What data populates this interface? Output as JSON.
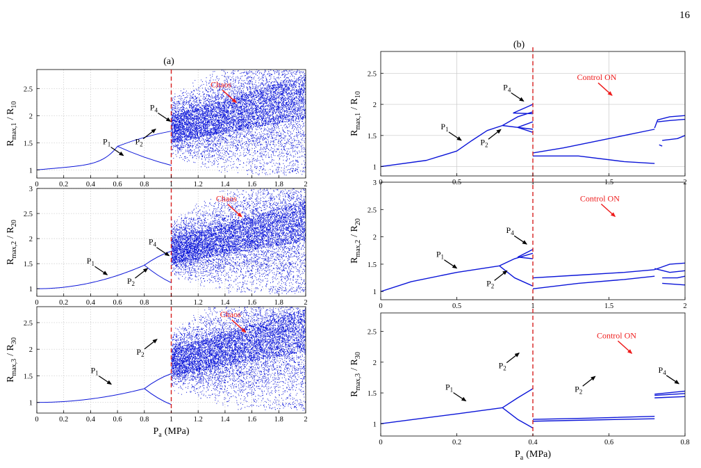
{
  "page_number": "16",
  "panel_a_label": "(a)",
  "panel_b_label": "(b)",
  "annotations": {
    "chaos": "Chaos",
    "control_on": "Control ON",
    "p1": "P",
    "p1_sub": "1",
    "p2": "P",
    "p2_sub": "2",
    "p4": "P",
    "p4_sub": "4"
  },
  "colors": {
    "data": "#0a14d8",
    "dashed_line": "#d62020",
    "annotation_red": "#ee1c1c",
    "grid": "#c8c8c8"
  },
  "chart_data": [
    {
      "id": "a1",
      "type": "scatter",
      "panel": "(a)",
      "ylabel_main": "R",
      "ylabel_sub": "max,1",
      "ylabel_tail": "/ R",
      "ylabel_tail_sub": "10",
      "xlim": [
        0,
        2
      ],
      "ylim": [
        0.85,
        2.85
      ],
      "xticks": [
        0,
        0.2,
        0.4,
        0.6,
        0.8,
        1,
        1.2,
        1.4,
        1.6,
        1.8,
        2
      ],
      "xtick_labels": [
        "0",
        "0.2",
        "0.4",
        "0.6",
        "0.8",
        "1",
        "1.2",
        "1.4",
        "1.6",
        "1.8",
        "2"
      ],
      "yticks": [
        1,
        1.5,
        2,
        2.5
      ],
      "ytick_labels": [
        "1",
        "1.5",
        "2",
        "2.5"
      ],
      "grid": true,
      "dashed_x": 1,
      "bifurcation": {
        "start": 1.0,
        "end": 1.25,
        "pd1": 0.6,
        "pd2": 0.8,
        "pd3": 0.92,
        "chaos_start": 1.0
      },
      "annotations": [
        {
          "label": "p1",
          "x": 0.52,
          "y": 1.47
        },
        {
          "label": "p2",
          "x": 0.76,
          "y": 1.47
        },
        {
          "label": "p4",
          "x": 0.87,
          "y": 2.1
        },
        {
          "label": "chaos",
          "x": 1.37,
          "y": 2.42,
          "red": true
        }
      ]
    },
    {
      "id": "a2",
      "type": "scatter",
      "panel": "(a)",
      "ylabel_main": "R",
      "ylabel_sub": "max,2",
      "ylabel_tail": "/ R",
      "ylabel_tail_sub": "20",
      "xlim": [
        0,
        2
      ],
      "ylim": [
        0.85,
        3.0
      ],
      "xticks": [
        0,
        0.2,
        0.4,
        0.6,
        0.8,
        1,
        1.2,
        1.4,
        1.6,
        1.8,
        2
      ],
      "xtick_labels": [
        "0",
        "0.2",
        "0.4",
        "0.6",
        "0.8",
        "1",
        "1.2",
        "1.4",
        "1.6",
        "1.8",
        "2"
      ],
      "yticks": [
        1,
        1.5,
        2,
        2.5,
        3
      ],
      "ytick_labels": [
        "1",
        "1.5",
        "2",
        "2.5",
        "3"
      ],
      "grid": true,
      "dashed_x": 1,
      "bifurcation": {
        "start": 1.0,
        "end": 1.45,
        "pd1": 0.8,
        "pd2": 0.96,
        "pd3": 1.0,
        "chaos_start": 1.0
      },
      "annotations": [
        {
          "label": "p1",
          "x": 0.4,
          "y": 1.5
        },
        {
          "label": "p2",
          "x": 0.7,
          "y": 1.1
        },
        {
          "label": "p4",
          "x": 0.86,
          "y": 1.88
        },
        {
          "label": "chaos",
          "x": 1.41,
          "y": 2.63,
          "red": true
        }
      ]
    },
    {
      "id": "a3",
      "type": "scatter",
      "panel": "(a)",
      "ylabel_main": "R",
      "ylabel_sub": "max,3",
      "ylabel_tail": "/ R",
      "ylabel_tail_sub": "30",
      "xlim": [
        0,
        2
      ],
      "ylim": [
        0.8,
        2.8
      ],
      "xticks": [
        0,
        0.2,
        0.4,
        0.6,
        0.8,
        1,
        1.2,
        1.4,
        1.6,
        1.8,
        2
      ],
      "xtick_labels": [
        "0",
        "0.2",
        "0.4",
        "0.6",
        "0.8",
        "1",
        "1.2",
        "1.4",
        "1.6",
        "1.8",
        "2"
      ],
      "yticks": [
        1,
        1.5,
        2,
        2.5
      ],
      "ytick_labels": [
        "1",
        "1.5",
        "2",
        "2.5"
      ],
      "grid": true,
      "dashed_x": 1,
      "bifurcation": {
        "start": 1.0,
        "end": 1.6,
        "pd1": 0.8,
        "pd2": 1.0,
        "pd3": 1.05,
        "chaos_start": 1.0
      },
      "annotations": [
        {
          "label": "p1",
          "x": 0.43,
          "y": 1.55
        },
        {
          "label": "p2",
          "x": 0.77,
          "y": 1.9
        },
        {
          "label": "chaos",
          "x": 1.44,
          "y": 2.5,
          "red": true
        }
      ],
      "xlabel_main": "P",
      "xlabel_sub": "a",
      "xlabel_tail": "(MPa)"
    },
    {
      "id": "b1",
      "type": "line",
      "panel": "(b)",
      "ylabel_main": "R",
      "ylabel_sub": "max,1",
      "ylabel_tail": "/ R",
      "ylabel_tail_sub": "10",
      "xlim": [
        0,
        2
      ],
      "ylim": [
        0.85,
        2.85
      ],
      "xticks": [
        0,
        0.5,
        1,
        1.5,
        2
      ],
      "xtick_labels": [
        "0",
        "0.5",
        "1",
        "1.5",
        "2"
      ],
      "yticks": [
        1,
        1.5,
        2,
        2.5
      ],
      "ytick_labels": [
        "1",
        "1.5",
        "2",
        "2.5"
      ],
      "grid": true,
      "dashed_x": 1,
      "branches": [
        [
          [
            0,
            1.0
          ],
          [
            0.3,
            1.1
          ],
          [
            0.5,
            1.25
          ],
          [
            0.6,
            1.42
          ],
          [
            0.7,
            1.58
          ],
          [
            0.8,
            1.66
          ]
        ],
        [
          [
            0.8,
            1.66
          ],
          [
            0.9,
            1.8
          ],
          [
            1.0,
            1.88
          ]
        ],
        [
          [
            0.8,
            1.66
          ],
          [
            0.9,
            1.63
          ],
          [
            1.0,
            1.6
          ]
        ],
        [
          [
            0.87,
            1.86
          ],
          [
            1.0,
            2.0
          ]
        ],
        [
          [
            0.87,
            1.86
          ],
          [
            1.0,
            1.85
          ]
        ],
        [
          [
            0.9,
            1.63
          ],
          [
            1.0,
            1.72
          ]
        ],
        [
          [
            0.9,
            1.63
          ],
          [
            1.0,
            1.55
          ]
        ],
        [
          [
            1.0,
            1.22
          ],
          [
            1.2,
            1.3
          ],
          [
            1.5,
            1.45
          ],
          [
            1.8,
            1.6
          ]
        ],
        [
          [
            1.0,
            1.17
          ],
          [
            1.3,
            1.17
          ],
          [
            1.6,
            1.08
          ],
          [
            1.8,
            1.05
          ]
        ],
        [
          [
            1.8,
            1.62
          ],
          [
            1.82,
            1.75
          ],
          [
            1.9,
            1.8
          ],
          [
            2.0,
            1.82
          ]
        ],
        [
          [
            1.82,
            1.72
          ],
          [
            1.9,
            1.74
          ],
          [
            2.0,
            1.76
          ]
        ],
        [
          [
            1.85,
            1.42
          ],
          [
            1.95,
            1.45
          ],
          [
            2.0,
            1.5
          ]
        ],
        [
          [
            1.83,
            1.35
          ],
          [
            1.85,
            1.33
          ]
        ]
      ],
      "annotations": [
        {
          "label": "p1",
          "x": 0.42,
          "y": 1.6
        },
        {
          "label": "p2",
          "x": 0.68,
          "y": 1.35
        },
        {
          "label": "p4",
          "x": 0.83,
          "y": 2.23
        },
        {
          "label": "control_on",
          "x": 1.42,
          "y": 2.3,
          "red": true
        }
      ]
    },
    {
      "id": "b2",
      "type": "line",
      "panel": "(b)",
      "ylabel_main": "R",
      "ylabel_sub": "max,2",
      "ylabel_tail": "/ R",
      "ylabel_tail_sub": "20",
      "xlim": [
        0,
        2
      ],
      "ylim": [
        0.85,
        3.0
      ],
      "xticks": [
        0,
        0.5,
        1,
        1.5,
        2
      ],
      "xtick_labels": [
        "0",
        "0.5",
        "1",
        "1.5",
        "2"
      ],
      "yticks": [
        1,
        1.5,
        2,
        2.5,
        3
      ],
      "ytick_labels": [
        "1",
        "1.5",
        "2",
        "2.5",
        "3"
      ],
      "grid": false,
      "dashed_x": 1,
      "branches": [
        [
          [
            0,
            1.0
          ],
          [
            0.2,
            1.18
          ],
          [
            0.5,
            1.35
          ],
          [
            0.78,
            1.47
          ]
        ],
        [
          [
            0.78,
            1.47
          ],
          [
            0.88,
            1.6
          ],
          [
            1.0,
            1.7
          ]
        ],
        [
          [
            0.78,
            1.47
          ],
          [
            0.88,
            1.25
          ],
          [
            1.0,
            1.1
          ]
        ],
        [
          [
            0.9,
            1.63
          ],
          [
            1.0,
            1.77
          ]
        ],
        [
          [
            0.9,
            1.63
          ],
          [
            1.0,
            1.6
          ]
        ],
        [
          [
            1.0,
            1.25
          ],
          [
            1.3,
            1.3
          ],
          [
            1.6,
            1.35
          ],
          [
            1.8,
            1.4
          ]
        ],
        [
          [
            1.0,
            1.05
          ],
          [
            1.3,
            1.15
          ],
          [
            1.6,
            1.22
          ],
          [
            1.8,
            1.28
          ]
        ],
        [
          [
            1.8,
            1.4
          ],
          [
            1.9,
            1.5
          ],
          [
            2.0,
            1.52
          ]
        ],
        [
          [
            1.8,
            1.42
          ],
          [
            1.9,
            1.35
          ],
          [
            2.0,
            1.38
          ]
        ],
        [
          [
            1.85,
            1.25
          ],
          [
            1.95,
            1.25
          ],
          [
            2.0,
            1.28
          ]
        ],
        [
          [
            1.85,
            1.15
          ],
          [
            2.0,
            1.12
          ]
        ]
      ],
      "annotations": [
        {
          "label": "p1",
          "x": 0.39,
          "y": 1.63
        },
        {
          "label": "p2",
          "x": 0.72,
          "y": 1.1
        },
        {
          "label": "p4",
          "x": 0.85,
          "y": 2.07
        },
        {
          "label": "control_on",
          "x": 1.44,
          "y": 2.55,
          "red": true
        }
      ]
    },
    {
      "id": "b3",
      "type": "line",
      "panel": "(b)",
      "ylabel_main": "R",
      "ylabel_sub": "max,3",
      "ylabel_tail": "/ R",
      "ylabel_tail_sub": "30",
      "xlim": [
        0,
        0.8
      ],
      "ylim": [
        0.8,
        2.8
      ],
      "xticks": [
        0,
        0.2,
        0.4,
        0.6,
        0.8
      ],
      "xtick_labels": [
        "0",
        "0.2",
        "0.4",
        "0.6",
        "0.8"
      ],
      "yticks": [
        1,
        1.5,
        2,
        2.5
      ],
      "ytick_labels": [
        "1",
        "1.5",
        "2",
        "2.5"
      ],
      "grid": false,
      "dashed_x": 0.4,
      "branches": [
        [
          [
            0,
            1.0
          ],
          [
            0.1,
            1.08
          ],
          [
            0.2,
            1.16
          ],
          [
            0.32,
            1.26
          ]
        ],
        [
          [
            0.32,
            1.26
          ],
          [
            0.36,
            1.42
          ],
          [
            0.4,
            1.57
          ]
        ],
        [
          [
            0.32,
            1.26
          ],
          [
            0.36,
            1.07
          ],
          [
            0.4,
            0.93
          ]
        ],
        [
          [
            0.4,
            1.07
          ],
          [
            0.55,
            1.09
          ],
          [
            0.72,
            1.12
          ]
        ],
        [
          [
            0.4,
            1.04
          ],
          [
            0.55,
            1.06
          ],
          [
            0.72,
            1.08
          ]
        ],
        [
          [
            0.72,
            1.48
          ],
          [
            0.8,
            1.53
          ]
        ],
        [
          [
            0.72,
            1.46
          ],
          [
            0.8,
            1.49
          ]
        ],
        [
          [
            0.72,
            1.42
          ],
          [
            0.8,
            1.44
          ]
        ]
      ],
      "annotations": [
        {
          "label": "p1",
          "x": 0.18,
          "y": 1.55
        },
        {
          "label": "p2",
          "x": 0.32,
          "y": 1.9
        },
        {
          "label": "p2",
          "x": 0.52,
          "y": 1.52
        },
        {
          "label": "p4",
          "x": 0.74,
          "y": 1.83
        },
        {
          "label": "control_on",
          "x": 0.62,
          "y": 2.3,
          "red": true
        }
      ],
      "xlabel_main": "P",
      "xlabel_sub": "a",
      "xlabel_tail": "(MPa)"
    }
  ]
}
